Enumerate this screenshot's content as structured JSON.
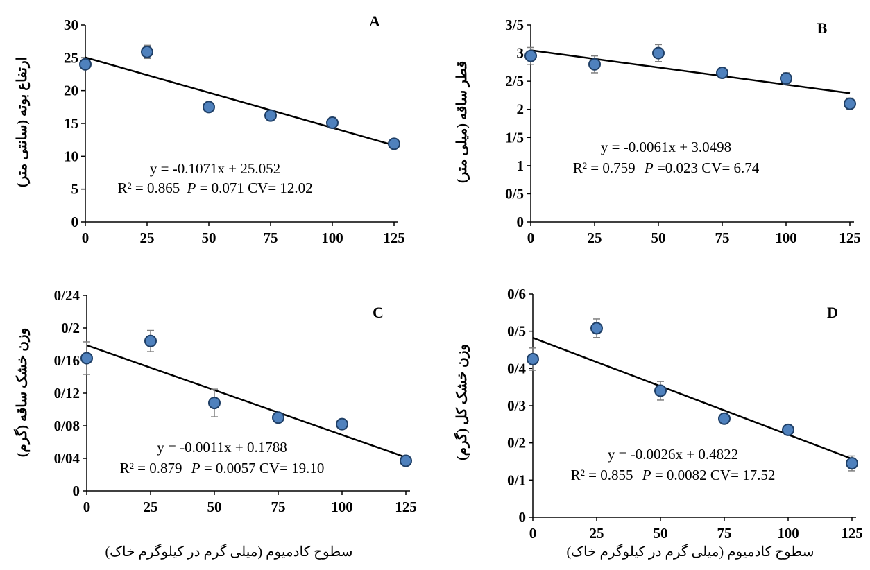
{
  "colors": {
    "marker_fill": "#4f81bd",
    "marker_stroke": "#1f3f66",
    "line": "#000000",
    "error_bar": "#7f7f7f"
  },
  "x_axis_label": "سطوح کادمیوم (میلی گرم در کیلوگرم خاک)",
  "chart_data": [
    {
      "type": "scatter",
      "panel_label": "A",
      "ylabel": "ارتفاع بوته (سانتی متر)",
      "x": [
        0,
        25,
        50,
        75,
        100,
        125
      ],
      "y": [
        24.0,
        25.9,
        17.5,
        16.2,
        15.1,
        11.9
      ],
      "error": [
        0.6,
        1.0,
        0.5,
        0.6,
        0.8,
        0.4
      ],
      "x_ticks": [
        "0",
        "25",
        "50",
        "75",
        "100",
        "125"
      ],
      "y_ticks": [
        "0",
        "5",
        "10",
        "15",
        "20",
        "25",
        "30"
      ],
      "ylim": [
        0,
        30
      ],
      "xlim": [
        0,
        125
      ],
      "trendline": {
        "slope": -0.1071,
        "intercept": 25.052
      },
      "equation": "y = -0.1071x + 25.052",
      "stats_r2": "R² = 0.865",
      "stats_p_label": "P",
      "stats_rest": "= 0.071 CV= 12.02"
    },
    {
      "type": "scatter",
      "panel_label": "B",
      "ylabel": "قطر ساقه (میلی متر)",
      "x": [
        0,
        25,
        50,
        75,
        100,
        125
      ],
      "y": [
        2.95,
        2.8,
        3.0,
        2.65,
        2.55,
        2.1
      ],
      "error": [
        0.15,
        0.15,
        0.15,
        0.05,
        0.1,
        0.1
      ],
      "x_ticks": [
        "0",
        "25",
        "50",
        "75",
        "100",
        "125"
      ],
      "y_ticks": [
        "0",
        "0/5",
        "1",
        "1/5",
        "2",
        "2/5",
        "3",
        "3/5"
      ],
      "ylim": [
        0,
        3.5
      ],
      "xlim": [
        0,
        125
      ],
      "trendline": {
        "slope": -0.0061,
        "intercept": 3.0498
      },
      "equation": "y = -0.0061x + 3.0498",
      "stats_r2": "R² = 0.759",
      "stats_p_label": "P",
      "stats_rest": "=0.023 CV= 6.74"
    },
    {
      "type": "scatter",
      "panel_label": "C",
      "ylabel": "وزن خشک ساقه (گرم)",
      "x": [
        0,
        25,
        50,
        75,
        100,
        125
      ],
      "y": [
        0.163,
        0.184,
        0.108,
        0.09,
        0.082,
        0.037
      ],
      "error": [
        0.02,
        0.013,
        0.017,
        0.005,
        0.005,
        0.006
      ],
      "x_ticks": [
        "0",
        "25",
        "50",
        "75",
        "100",
        "125"
      ],
      "y_ticks": [
        "0",
        "0/04",
        "0/08",
        "0/12",
        "0/16",
        "0/2",
        "0/24"
      ],
      "ylim": [
        0,
        0.24
      ],
      "xlim": [
        0,
        125
      ],
      "trendline": {
        "slope": -0.0011,
        "intercept": 0.1788
      },
      "equation": "y = -0.0011x + 0.1788",
      "stats_r2": "R² = 0.879",
      "stats_p_label": "P",
      "stats_rest": "= 0.0057 CV= 19.10"
    },
    {
      "type": "scatter",
      "panel_label": "D",
      "ylabel": "وزن خشک کل (گرم)",
      "x": [
        0,
        25,
        50,
        75,
        100,
        125
      ],
      "y": [
        0.425,
        0.508,
        0.34,
        0.265,
        0.235,
        0.145
      ],
      "error": [
        0.03,
        0.025,
        0.025,
        0.008,
        0.008,
        0.02
      ],
      "x_ticks": [
        "0",
        "25",
        "50",
        "75",
        "100",
        "125"
      ],
      "y_ticks": [
        "0",
        "0/1",
        "0/2",
        "0/3",
        "0/4",
        "0/5",
        "0/6"
      ],
      "ylim": [
        0,
        0.6
      ],
      "xlim": [
        0,
        125
      ],
      "trendline": {
        "slope": -0.0026,
        "intercept": 0.4822
      },
      "equation": "y = -0.0026x + 0.4822",
      "stats_r2": "R² = 0.855",
      "stats_p_label": "P",
      "stats_rest": "= 0.0082 CV= 17.52"
    }
  ]
}
